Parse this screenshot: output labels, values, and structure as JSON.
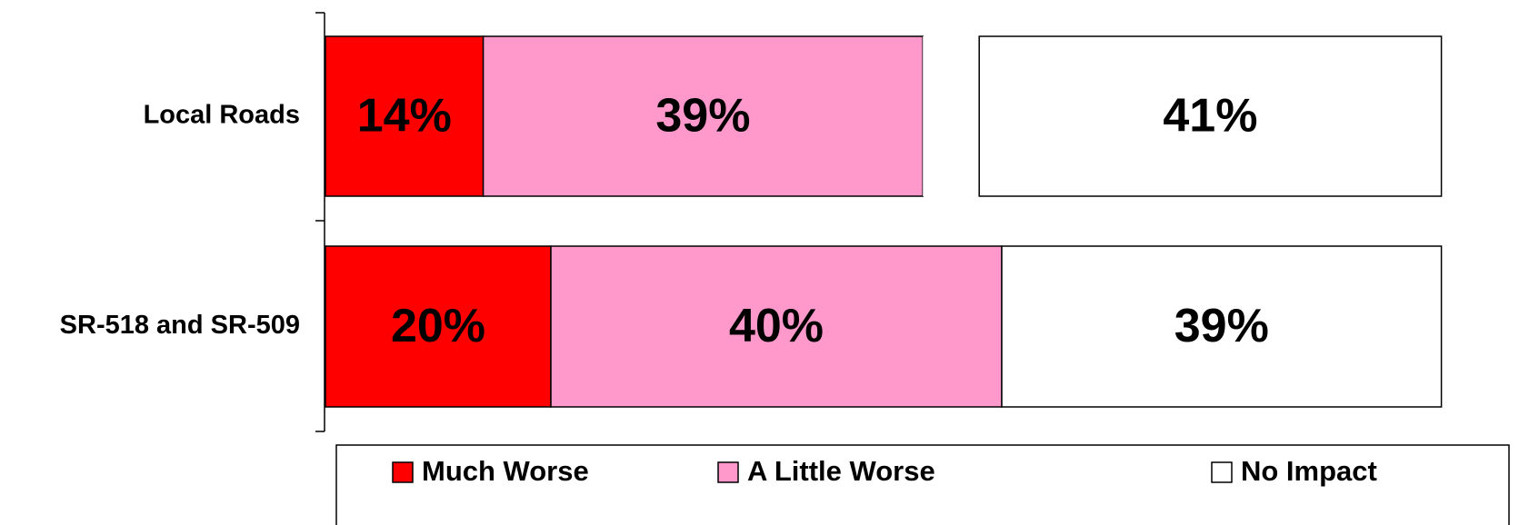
{
  "chart_data": {
    "type": "stacked_bar_horizontal",
    "categories": [
      "Local Roads",
      "SR-518 and SR-509"
    ],
    "series": [
      {
        "name": "Much Worse",
        "color": "#ff0000",
        "values": [
          14,
          20
        ],
        "value_labels": [
          "14%",
          "20%"
        ]
      },
      {
        "name": "A Little Worse",
        "color": "#ff99cc",
        "values": [
          39,
          40
        ],
        "value_labels": [
          "39%",
          "40%"
        ]
      },
      {
        "name": null,
        "color": "#ffffff",
        "values": [
          5,
          0
        ]
      },
      {
        "name": "No Impact",
        "color": "#ffffff",
        "values": [
          41,
          39
        ],
        "value_labels": [
          "41%",
          "39%"
        ]
      }
    ],
    "xlim": [
      0,
      100
    ]
  }
}
